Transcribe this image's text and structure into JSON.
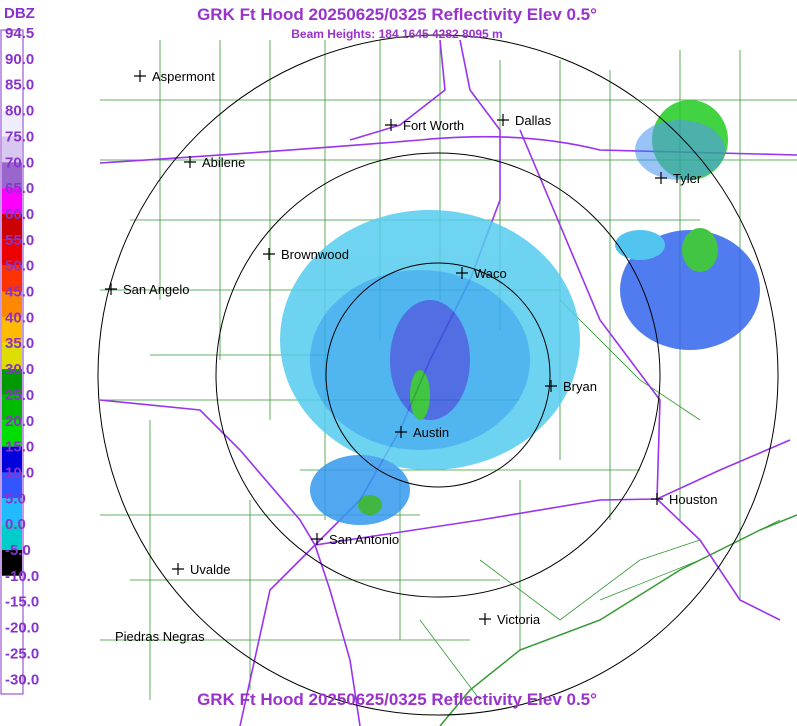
{
  "header": {
    "title": "GRK Ft Hood 20250625/0325 Reflectivity Elev 0.5°",
    "subtitle": "Beam Heights: 184 1645 4282 8095 m"
  },
  "legend": {
    "title": "DBZ",
    "steps": [
      {
        "label": "94.5",
        "color": "#ffffff"
      },
      {
        "label": "90.0",
        "color": "#ffffff"
      },
      {
        "label": "85.0",
        "color": "#ffffff"
      },
      {
        "label": "80.0",
        "color": "#eeeeff"
      },
      {
        "label": "75.0",
        "color": "#d8c8f0"
      },
      {
        "label": "70.0",
        "color": "#9966cc"
      },
      {
        "label": "65.0",
        "color": "#ff00ff"
      },
      {
        "label": "60.0",
        "color": "#cc0000"
      },
      {
        "label": "55.0",
        "color": "#ee0000"
      },
      {
        "label": "50.0",
        "color": "#ff3300"
      },
      {
        "label": "45.0",
        "color": "#ff8800"
      },
      {
        "label": "40.0",
        "color": "#ffbb00"
      },
      {
        "label": "35.0",
        "color": "#dddd00"
      },
      {
        "label": "30.0",
        "color": "#009900"
      },
      {
        "label": "25.0",
        "color": "#00bb00"
      },
      {
        "label": "20.0",
        "color": "#00dd00"
      },
      {
        "label": "15.0",
        "color": "#0000dd"
      },
      {
        "label": "10.0",
        "color": "#3355ff"
      },
      {
        "label": "5.0",
        "color": "#22bbff"
      },
      {
        "label": "0.0",
        "color": "#00cccc"
      },
      {
        "label": "-5.0",
        "color": "#000000"
      },
      {
        "label": "-10.0",
        "color": "#ffffff"
      },
      {
        "label": "-15.0",
        "color": "#ffffff"
      },
      {
        "label": "-20.0",
        "color": "#ffffff"
      },
      {
        "label": "-25.0",
        "color": "#ffffff"
      },
      {
        "label": "-30.0",
        "color": "#ffffff"
      }
    ]
  },
  "cities": [
    "Aspermont",
    "Fort Worth",
    "Dallas",
    "Abilene",
    "Tyler",
    "Brownwood",
    "Waco",
    "San Angelo",
    "Bryan",
    "Austin",
    "Houston",
    "San Antonio",
    "Uvalde",
    "Victoria",
    "Piedras Negras"
  ],
  "footer": {
    "title": "GRK Ft Hood 20250625/0325 Reflectivity Elev 0.5°"
  }
}
